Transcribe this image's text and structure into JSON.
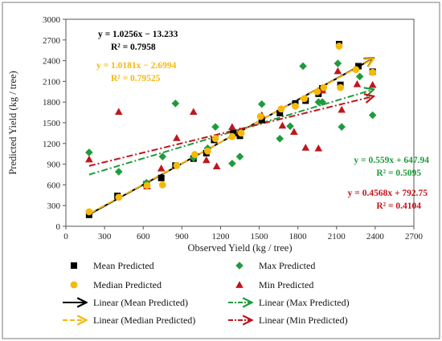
{
  "chart_data": {
    "type": "scatter",
    "xlabel": "Observed Yield (kg / tree)",
    "ylabel": "Predicted Yield (kg / tree)",
    "xlim": [
      0,
      2700
    ],
    "ylim": [
      0,
      3000
    ],
    "xticks": [
      0,
      300,
      600,
      900,
      1200,
      1500,
      1800,
      2100,
      2400,
      2700
    ],
    "yticks": [
      0,
      300,
      600,
      900,
      1200,
      1500,
      1800,
      2100,
      2400,
      2700,
      3000
    ],
    "grid": false,
    "legend": "bottom",
    "series": [
      {
        "name": "Mean Predicted",
        "marker": "square",
        "color": "#000000",
        "points": [
          [
            180,
            165
          ],
          [
            400,
            440
          ],
          [
            625,
            610
          ],
          [
            740,
            700
          ],
          [
            850,
            880
          ],
          [
            990,
            980
          ],
          [
            1090,
            1060
          ],
          [
            1150,
            1250
          ],
          [
            1300,
            1350
          ],
          [
            1350,
            1310
          ],
          [
            1520,
            1540
          ],
          [
            1660,
            1640
          ],
          [
            1780,
            1780
          ],
          [
            1860,
            1820
          ],
          [
            1960,
            1920
          ],
          [
            1990,
            2000
          ],
          [
            2120,
            2640
          ],
          [
            2130,
            2050
          ],
          [
            2270,
            2320
          ],
          [
            2380,
            2240
          ]
        ]
      },
      {
        "name": "Median Predicted",
        "marker": "circle",
        "color": "#f5b90b",
        "points": [
          [
            180,
            210
          ],
          [
            410,
            420
          ],
          [
            630,
            590
          ],
          [
            750,
            600
          ],
          [
            860,
            880
          ],
          [
            1000,
            1040
          ],
          [
            1100,
            1090
          ],
          [
            1160,
            1270
          ],
          [
            1290,
            1300
          ],
          [
            1360,
            1350
          ],
          [
            1510,
            1590
          ],
          [
            1670,
            1700
          ],
          [
            1780,
            1740
          ],
          [
            1850,
            1850
          ],
          [
            1950,
            1950
          ],
          [
            2000,
            2010
          ],
          [
            2120,
            2610
          ],
          [
            2130,
            2010
          ],
          [
            2250,
            2270
          ],
          [
            2380,
            2230
          ]
        ]
      },
      {
        "name": "Max Predicted",
        "marker": "diamond",
        "color": "#1f9b3c",
        "points": [
          [
            180,
            1070
          ],
          [
            410,
            790
          ],
          [
            625,
            630
          ],
          [
            750,
            1010
          ],
          [
            850,
            1780
          ],
          [
            990,
            990
          ],
          [
            1100,
            1130
          ],
          [
            1160,
            1440
          ],
          [
            1290,
            910
          ],
          [
            1350,
            1010
          ],
          [
            1520,
            1770
          ],
          [
            1660,
            1270
          ],
          [
            1740,
            1450
          ],
          [
            1840,
            2320
          ],
          [
            1960,
            1800
          ],
          [
            1990,
            1800
          ],
          [
            2110,
            2360
          ],
          [
            2140,
            1440
          ],
          [
            2280,
            2170
          ],
          [
            2380,
            1610
          ]
        ]
      },
      {
        "name": "Min Predicted",
        "marker": "triangle",
        "color": "#c0161c",
        "points": [
          [
            180,
            970
          ],
          [
            410,
            1660
          ],
          [
            630,
            580
          ],
          [
            740,
            840
          ],
          [
            860,
            1280
          ],
          [
            990,
            1660
          ],
          [
            1090,
            960
          ],
          [
            1170,
            870
          ],
          [
            1290,
            1440
          ],
          [
            1350,
            1380
          ],
          [
            1520,
            1610
          ],
          [
            1680,
            1460
          ],
          [
            1770,
            1370
          ],
          [
            1860,
            1140
          ],
          [
            1960,
            1130
          ],
          [
            1990,
            1970
          ],
          [
            2110,
            2250
          ],
          [
            2140,
            1690
          ],
          [
            2260,
            2060
          ],
          [
            2380,
            2050
          ]
        ]
      }
    ],
    "trendlines": [
      {
        "name": "Linear (Mean Predicted)",
        "slope": 1.0256,
        "intercept": -13.233,
        "x_range": [
          180,
          2380
        ],
        "color": "#000000",
        "style": "solid"
      },
      {
        "name": "Linear (Median Predicted)",
        "slope": 1.0181,
        "intercept": -2.6994,
        "x_range": [
          180,
          2380
        ],
        "color": "#f5b90b",
        "style": "dash"
      },
      {
        "name": "Linear (Max Predicted)",
        "slope": 0.559,
        "intercept": 647.94,
        "x_range": [
          180,
          2380
        ],
        "color": "#1f9b3c",
        "style": "dashdot"
      },
      {
        "name": "Linear (Min Predicted)",
        "slope": 0.4568,
        "intercept": 792.75,
        "x_range": [
          180,
          2380
        ],
        "color": "#c0161c",
        "style": "dashdot"
      }
    ],
    "annotations": [
      {
        "text": "y = 1.0256x − 13.233",
        "color": "#000000"
      },
      {
        "text": "R² = 0.7958",
        "color": "#000000"
      },
      {
        "text": "y = 1.0181x − 2.6994",
        "color": "#f5b90b"
      },
      {
        "text": "R² = 0.79525",
        "color": "#f5b90b"
      },
      {
        "text": "y = 0.559x + 647.94",
        "color": "#1f9b3c"
      },
      {
        "text": "R² = 0.5095",
        "color": "#1f9b3c"
      },
      {
        "text": "y = 0.4568x + 792.75",
        "color": "#c0161c"
      },
      {
        "text": "R² = 0.4104",
        "color": "#c0161c"
      }
    ],
    "legend_entries": [
      {
        "label": "Mean Predicted",
        "symbol": "square",
        "color": "#000000"
      },
      {
        "label": "Max Predicted",
        "symbol": "diamond",
        "color": "#1f9b3c"
      },
      {
        "label": "Median Predicted",
        "symbol": "circle",
        "color": "#f5b90b"
      },
      {
        "label": "Min Predicted",
        "symbol": "triangle",
        "color": "#c0161c"
      },
      {
        "label": "Linear (Mean Predicted)",
        "symbol": "line-solid",
        "color": "#000000"
      },
      {
        "label": "Linear (Max Predicted)",
        "symbol": "line-dashdot",
        "color": "#1f9b3c"
      },
      {
        "label": "Linear (Median Predicted)",
        "symbol": "line-dash",
        "color": "#f5b90b"
      },
      {
        "label": "Linear (Min Predicted)",
        "symbol": "line-dashdot",
        "color": "#c0161c"
      }
    ]
  }
}
